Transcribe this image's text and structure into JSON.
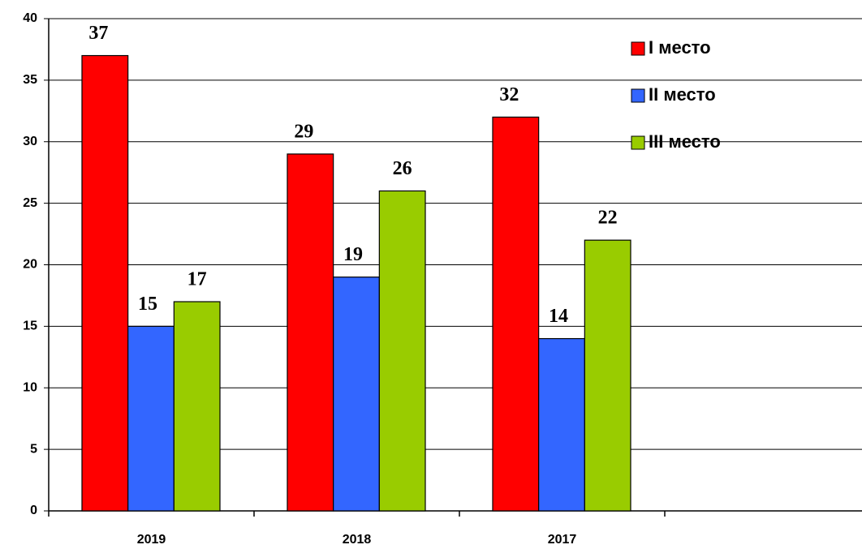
{
  "chart_data": {
    "type": "bar",
    "categories": [
      "2019",
      "2018",
      "2017",
      null
    ],
    "series": [
      {
        "name": "I место",
        "color": "#ff0000",
        "values": [
          37,
          29,
          32,
          null
        ]
      },
      {
        "name": "II место",
        "color": "#3366ff",
        "values": [
          15,
          19,
          14,
          null
        ]
      },
      {
        "name": "III место",
        "color": "#99cc00",
        "values": [
          17,
          26,
          22,
          null
        ]
      }
    ],
    "ylim": [
      0,
      40
    ],
    "yticks": [
      0,
      5,
      10,
      15,
      20,
      25,
      30,
      35,
      40
    ],
    "grid": true,
    "legend": "upper right"
  }
}
